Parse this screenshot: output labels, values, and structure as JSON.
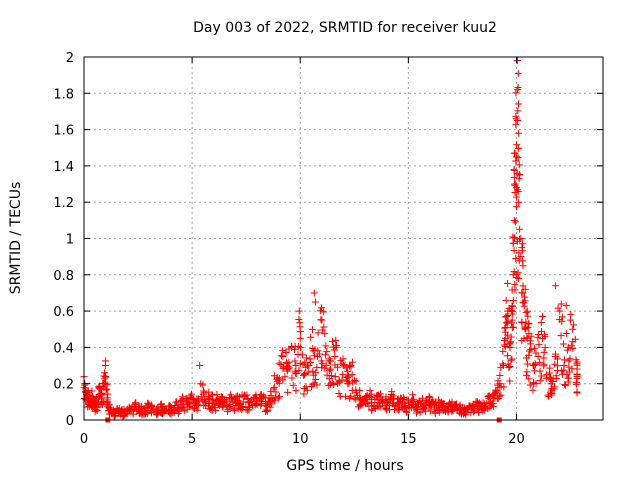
{
  "chart_data": {
    "type": "scatter",
    "title": "Day 003 of 2022, SRMTID for receiver kuu2",
    "xlabel": "GPS time / hours",
    "ylabel": "SRMTID / TECUs",
    "xlim": [
      0,
      24
    ],
    "ylim": [
      0,
      2
    ],
    "xticks": [
      0,
      5,
      10,
      15,
      20
    ],
    "xtick_labels": [
      "0",
      "5",
      "10",
      "15",
      "20"
    ],
    "yticks": [
      0,
      0.2,
      0.4,
      0.6,
      0.8,
      1.0,
      1.2,
      1.4,
      1.6,
      1.8,
      2.0
    ],
    "ytick_labels": [
      "0",
      "0.2",
      "0.4",
      "0.6",
      "0.8",
      "1",
      "1.2",
      "1.4",
      "1.6",
      "1.8",
      "2"
    ],
    "grid": true,
    "marker": "+",
    "series": [
      {
        "name": "SRMTID",
        "color": "#ff0000",
        "x": [
          0.0,
          0.1,
          0.2,
          0.3,
          0.4,
          0.5,
          0.6,
          0.7,
          0.8,
          0.9,
          1.0,
          1.1,
          1.2,
          1.4,
          1.6,
          1.8,
          2.0,
          2.2,
          2.4,
          2.6,
          2.8,
          3.0,
          3.2,
          3.4,
          3.6,
          3.8,
          4.0,
          4.2,
          4.4,
          4.6,
          4.8,
          5.0,
          5.2,
          5.4,
          5.6,
          5.8,
          6.0,
          6.2,
          6.4,
          6.6,
          6.8,
          7.0,
          7.2,
          7.4,
          7.6,
          7.8,
          8.0,
          8.2,
          8.4,
          8.6,
          8.8,
          9.0,
          9.2,
          9.4,
          9.6,
          9.8,
          10.0,
          10.2,
          10.4,
          10.6,
          10.8,
          11.0,
          11.2,
          11.4,
          11.6,
          11.8,
          12.0,
          12.2,
          12.4,
          12.6,
          12.8,
          13.0,
          13.2,
          13.4,
          13.6,
          13.8,
          14.0,
          14.2,
          14.4,
          14.6,
          14.8,
          15.0,
          15.2,
          15.4,
          15.6,
          15.8,
          16.0,
          16.2,
          16.4,
          16.6,
          16.8,
          17.0,
          17.2,
          17.4,
          17.6,
          17.8,
          18.0,
          18.2,
          18.4,
          18.6,
          18.8,
          19.0,
          19.2,
          19.4,
          19.5,
          19.6,
          19.7,
          19.8,
          19.85,
          19.9,
          19.95,
          20.0,
          20.05,
          20.1,
          20.2,
          20.3,
          20.4,
          20.5,
          20.6,
          20.8,
          21.0,
          21.2,
          21.4,
          21.6,
          21.8,
          22.0,
          22.2,
          22.4,
          22.6,
          22.8
        ],
        "y": [
          0.18,
          0.15,
          0.12,
          0.1,
          0.13,
          0.08,
          0.1,
          0.14,
          0.12,
          0.2,
          0.24,
          0.1,
          0.05,
          0.04,
          0.05,
          0.04,
          0.06,
          0.05,
          0.07,
          0.06,
          0.05,
          0.08,
          0.06,
          0.05,
          0.07,
          0.05,
          0.06,
          0.08,
          0.07,
          0.1,
          0.09,
          0.12,
          0.08,
          0.2,
          0.1,
          0.12,
          0.09,
          0.11,
          0.1,
          0.08,
          0.12,
          0.1,
          0.09,
          0.13,
          0.1,
          0.08,
          0.11,
          0.12,
          0.09,
          0.1,
          0.18,
          0.22,
          0.35,
          0.28,
          0.4,
          0.3,
          0.45,
          0.25,
          0.3,
          0.38,
          0.35,
          0.55,
          0.3,
          0.28,
          0.35,
          0.22,
          0.3,
          0.2,
          0.25,
          0.15,
          0.12,
          0.1,
          0.13,
          0.08,
          0.11,
          0.1,
          0.09,
          0.12,
          0.08,
          0.1,
          0.09,
          0.08,
          0.1,
          0.07,
          0.09,
          0.08,
          0.1,
          0.07,
          0.08,
          0.09,
          0.06,
          0.08,
          0.07,
          0.06,
          0.05,
          0.07,
          0.06,
          0.08,
          0.07,
          0.09,
          0.1,
          0.12,
          0.18,
          0.3,
          0.45,
          0.6,
          0.4,
          0.55,
          0.8,
          1.1,
          1.3,
          1.45,
          1.82,
          1.2,
          0.9,
          0.7,
          0.5,
          0.45,
          0.38,
          0.3,
          0.35,
          0.45,
          0.25,
          0.2,
          0.35,
          0.6,
          0.3,
          0.4,
          0.5,
          0.25
        ],
        "extra_points": [
          {
            "x": 9.95,
            "y": 0.6
          },
          {
            "x": 10.65,
            "y": 0.7
          },
          {
            "x": 10.7,
            "y": 0.65
          },
          {
            "x": 5.35,
            "y": 0.3
          },
          {
            "x": 19.9,
            "y": 1.47
          },
          {
            "x": 20.05,
            "y": 1.65
          },
          {
            "x": 20.1,
            "y": 1.58
          },
          {
            "x": 20.0,
            "y": 1.28
          },
          {
            "x": 20.15,
            "y": 1.35
          },
          {
            "x": 20.2,
            "y": 1.0
          },
          {
            "x": 20.25,
            "y": 0.95
          },
          {
            "x": 20.3,
            "y": 0.85
          },
          {
            "x": 20.4,
            "y": 0.72
          },
          {
            "x": 21.8,
            "y": 0.74
          },
          {
            "x": 21.2,
            "y": 0.57
          },
          {
            "x": 22.3,
            "y": 0.63
          },
          {
            "x": 22.5,
            "y": 0.55
          },
          {
            "x": 0.95,
            "y": 0.26
          }
        ],
        "gap_markers_x": [
          1.1,
          19.2
        ]
      }
    ]
  }
}
